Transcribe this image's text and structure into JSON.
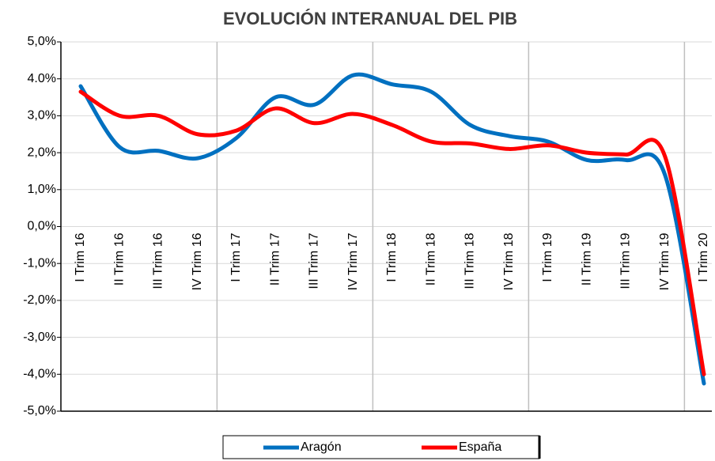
{
  "chart_data": {
    "type": "line",
    "title": "EVOLUCIÓN INTERANUAL DEL PIB",
    "categories": [
      "I Trim 16",
      "II Trim 16",
      "III Trim 16",
      "IV Trim 16",
      "I Trim 17",
      "II Trim 17",
      "III Trim 17",
      "IV Trim 17",
      "I Trim 18",
      "II Trim 18",
      "III Trim 18",
      "IV Trim 18",
      "I Trim 19",
      "II Trim 19",
      "III Trim 19",
      "IV Trim 19",
      "I Trim 20"
    ],
    "series": [
      {
        "name": "Aragón",
        "color": "#0070c0",
        "values": [
          3.8,
          2.15,
          2.05,
          1.85,
          2.4,
          3.5,
          3.3,
          4.1,
          3.85,
          3.65,
          2.75,
          2.45,
          2.3,
          1.8,
          1.8,
          1.4,
          -4.25
        ]
      },
      {
        "name": "España",
        "color": "#ff0000",
        "values": [
          3.65,
          3.0,
          3.0,
          2.5,
          2.6,
          3.2,
          2.8,
          3.05,
          2.75,
          2.3,
          2.25,
          2.1,
          2.2,
          2.0,
          1.95,
          1.9,
          -4.0
        ]
      }
    ],
    "ylim": [
      -5,
      5
    ],
    "yticks": [
      {
        "value": -5,
        "label": "-5,0%"
      },
      {
        "value": -4,
        "label": "-4,0%"
      },
      {
        "value": -3,
        "label": "-3,0%"
      },
      {
        "value": -2,
        "label": "-2,0%"
      },
      {
        "value": -1,
        "label": "-1,0%"
      },
      {
        "value": 0,
        "label": "0,0%"
      },
      {
        "value": 1,
        "label": "1,0%"
      },
      {
        "value": 2,
        "label": "2,0%"
      },
      {
        "value": 3,
        "label": "3,0%"
      },
      {
        "value": 4,
        "label": "4.0%"
      },
      {
        "value": 5,
        "label": "5,0%"
      }
    ],
    "grid": true,
    "legend": "bottom"
  }
}
